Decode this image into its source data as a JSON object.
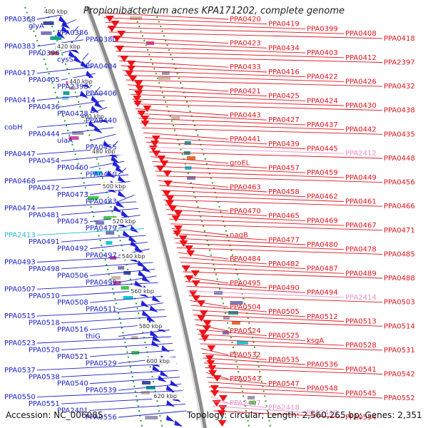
{
  "title": "Propionibacterium acnes KPA171202, complete genome",
  "footer": {
    "accession": "Accession: NC_006085",
    "summary": "Topology: circular; Length: 2,560,265 bp; Genes: 2,351"
  },
  "colors": {
    "left_label": "#1c22c8",
    "right_label": "#e0141e",
    "cyan_label": "#27b8d6",
    "pink_label": "#e890c8",
    "backbone": "#8c8c8c",
    "dotted_guide": "#2e9a2e"
  },
  "scale_ticks": [
    "400 kbp",
    "420 kbp",
    "440 kbp",
    "460 kbp",
    "480 kbp",
    "500 kbp",
    "520 kbp",
    "540 kbp",
    "560 kbp",
    "580 kbp",
    "600 kbp",
    "620 kbp"
  ],
  "left_labels": [
    {
      "text": "PPA0368",
      "kind": "gene"
    },
    {
      "text": "glyA",
      "kind": "gene"
    },
    {
      "text": "PPA0386",
      "kind": "gene"
    },
    {
      "text": "PPA0380",
      "kind": "gene"
    },
    {
      "text": "PPA0383",
      "kind": "gene"
    },
    {
      "text": "PPA0396",
      "kind": "gene"
    },
    {
      "text": "cysS",
      "kind": "gene"
    },
    {
      "text": "PPA0404",
      "kind": "gene"
    },
    {
      "text": "PPA0417",
      "kind": "gene"
    },
    {
      "text": "PPA0405",
      "kind": "gene"
    },
    {
      "text": "PPA2398",
      "kind": "gene"
    },
    {
      "text": "PPA0406",
      "kind": "gene"
    },
    {
      "text": "PPA0414",
      "kind": "gene"
    },
    {
      "text": "PPA0436",
      "kind": "gene"
    },
    {
      "text": "PPA0428",
      "kind": "gene"
    },
    {
      "text": "PPA0440",
      "kind": "gene"
    },
    {
      "text": "cobH",
      "kind": "gene"
    },
    {
      "text": "PPA0444",
      "kind": "gene"
    },
    {
      "text": "ulaA",
      "kind": "gene"
    },
    {
      "text": "PPA0455",
      "kind": "gene"
    },
    {
      "text": "PPA0447",
      "kind": "gene"
    },
    {
      "text": "PPA0454",
      "kind": "gene"
    },
    {
      "text": "PPA0460",
      "kind": "gene"
    },
    {
      "text": "PPA0450",
      "kind": "gene"
    },
    {
      "text": "PPA0468",
      "kind": "gene"
    },
    {
      "text": "PPA0472",
      "kind": "gene"
    },
    {
      "text": "PPA0473",
      "kind": "gene"
    },
    {
      "text": "PPA0483",
      "kind": "gene"
    },
    {
      "text": "PPA0474",
      "kind": "gene"
    },
    {
      "text": "PPA0481",
      "kind": "gene"
    },
    {
      "text": "PPA0475",
      "kind": "gene"
    },
    {
      "text": "PPA0479",
      "kind": "gene"
    },
    {
      "text": "PPA2413",
      "kind": "rna"
    },
    {
      "text": "PPA0491",
      "kind": "gene"
    },
    {
      "text": "PPA0492",
      "kind": "gene"
    },
    {
      "text": "PPA0497",
      "kind": "gene"
    },
    {
      "text": "PPA0493",
      "kind": "gene"
    },
    {
      "text": "PPA0498",
      "kind": "gene"
    },
    {
      "text": "PPA0506",
      "kind": "gene"
    },
    {
      "text": "PPA0499",
      "kind": "gene"
    },
    {
      "text": "PPA0507",
      "kind": "gene"
    },
    {
      "text": "PPA0510",
      "kind": "gene"
    },
    {
      "text": "PPA0508",
      "kind": "gene"
    },
    {
      "text": "PPA0511",
      "kind": "gene"
    },
    {
      "text": "PPA0515",
      "kind": "gene"
    },
    {
      "text": "PPA0518",
      "kind": "gene"
    },
    {
      "text": "PPA0516",
      "kind": "gene"
    },
    {
      "text": "thiG",
      "kind": "gene"
    },
    {
      "text": "PPA0523",
      "kind": "gene"
    },
    {
      "text": "PPA0520",
      "kind": "gene"
    },
    {
      "text": "PPA0521",
      "kind": "gene"
    },
    {
      "text": "PPA0529",
      "kind": "gene"
    },
    {
      "text": "PPA0537",
      "kind": "gene"
    },
    {
      "text": "PPA0538",
      "kind": "gene"
    },
    {
      "text": "PPA0540",
      "kind": "gene"
    },
    {
      "text": "PPA0539",
      "kind": "gene"
    },
    {
      "text": "PPA0550",
      "kind": "gene"
    },
    {
      "text": "PPA0551",
      "kind": "gene"
    },
    {
      "text": "PPA2401",
      "kind": "gene"
    },
    {
      "text": "PPA0556",
      "kind": "gene"
    }
  ],
  "right_labels": [
    {
      "text": "PPA0420",
      "kind": "gene"
    },
    {
      "text": "PPA0419",
      "kind": "gene"
    },
    {
      "text": "PPA0399",
      "kind": "gene"
    },
    {
      "text": "PPA0408",
      "kind": "gene"
    },
    {
      "text": "PPA0418",
      "kind": "gene"
    },
    {
      "text": "PPA0423",
      "kind": "gene"
    },
    {
      "text": "PPA0434",
      "kind": "gene"
    },
    {
      "text": "PPA0403",
      "kind": "gene"
    },
    {
      "text": "PPA0412",
      "kind": "gene"
    },
    {
      "text": "PPA2397",
      "kind": "gene"
    },
    {
      "text": "PPA0433",
      "kind": "gene"
    },
    {
      "text": "PPA0416",
      "kind": "gene"
    },
    {
      "text": "PPA0422",
      "kind": "gene"
    },
    {
      "text": "PPA0426",
      "kind": "gene"
    },
    {
      "text": "PPA0432",
      "kind": "gene"
    },
    {
      "text": "PPA0421",
      "kind": "gene"
    },
    {
      "text": "PPA0425",
      "kind": "gene"
    },
    {
      "text": "PPA0424",
      "kind": "gene"
    },
    {
      "text": "PPA0430",
      "kind": "gene"
    },
    {
      "text": "PPA0438",
      "kind": "gene"
    },
    {
      "text": "PPA0443",
      "kind": "gene"
    },
    {
      "text": "PPA0427",
      "kind": "gene"
    },
    {
      "text": "PPA0437",
      "kind": "gene"
    },
    {
      "text": "PPA0442",
      "kind": "gene"
    },
    {
      "text": "PPA0435",
      "kind": "gene"
    },
    {
      "text": "PPA0441",
      "kind": "gene"
    },
    {
      "text": "PPA0439",
      "kind": "gene"
    },
    {
      "text": "PPA0445",
      "kind": "gene"
    },
    {
      "text": "PPA2412",
      "kind": "rna"
    },
    {
      "text": "PPA0448",
      "kind": "gene"
    },
    {
      "text": "groEL",
      "kind": "gene"
    },
    {
      "text": "PPA0457",
      "kind": "gene"
    },
    {
      "text": "PPA0459",
      "kind": "gene"
    },
    {
      "text": "PPA0449",
      "kind": "gene"
    },
    {
      "text": "PPA0456",
      "kind": "gene"
    },
    {
      "text": "PPA0463",
      "kind": "gene"
    },
    {
      "text": "PPA0458",
      "kind": "gene"
    },
    {
      "text": "PPA0462",
      "kind": "gene"
    },
    {
      "text": "PPA0461",
      "kind": "gene"
    },
    {
      "text": "PPA0466",
      "kind": "gene"
    },
    {
      "text": "PPA0470",
      "kind": "gene"
    },
    {
      "text": "PPA0465",
      "kind": "gene"
    },
    {
      "text": "PPA0469",
      "kind": "gene"
    },
    {
      "text": "PPA0467",
      "kind": "gene"
    },
    {
      "text": "PPA0471",
      "kind": "gene"
    },
    {
      "text": "nagB",
      "kind": "gene"
    },
    {
      "text": "PPA0477",
      "kind": "gene"
    },
    {
      "text": "PPA0480",
      "kind": "gene"
    },
    {
      "text": "PPA0478",
      "kind": "gene"
    },
    {
      "text": "PPA0485",
      "kind": "gene"
    },
    {
      "text": "PPA0484",
      "kind": "gene"
    },
    {
      "text": "PPA0482",
      "kind": "gene"
    },
    {
      "text": "PPA0487",
      "kind": "gene"
    },
    {
      "text": "PPA0489",
      "kind": "gene"
    },
    {
      "text": "PPA0488",
      "kind": "gene"
    },
    {
      "text": "PPA0495",
      "kind": "gene"
    },
    {
      "text": "PPA0490",
      "kind": "gene"
    },
    {
      "text": "PPA0494",
      "kind": "gene"
    },
    {
      "text": "PPA2414",
      "kind": "rna"
    },
    {
      "text": "PPA0503",
      "kind": "gene"
    },
    {
      "text": "PPA0504",
      "kind": "gene"
    },
    {
      "text": "PPA0505",
      "kind": "gene"
    },
    {
      "text": "PPA0512",
      "kind": "gene"
    },
    {
      "text": "PPA0513",
      "kind": "gene"
    },
    {
      "text": "PPA0514",
      "kind": "gene"
    },
    {
      "text": "PPA0524",
      "kind": "gene"
    },
    {
      "text": "PPA0525",
      "kind": "gene"
    },
    {
      "text": "ksgA",
      "kind": "gene"
    },
    {
      "text": "PPA0528",
      "kind": "gene"
    },
    {
      "text": "PPA0531",
      "kind": "gene"
    },
    {
      "text": "PPA0532",
      "kind": "gene"
    },
    {
      "text": "PPA0535",
      "kind": "gene"
    },
    {
      "text": "PPA0536",
      "kind": "gene"
    },
    {
      "text": "PPA0541",
      "kind": "gene"
    },
    {
      "text": "PPA0542",
      "kind": "gene"
    },
    {
      "text": "PPA0543",
      "kind": "gene"
    },
    {
      "text": "PPA0547",
      "kind": "gene"
    },
    {
      "text": "PPA0548",
      "kind": "gene"
    },
    {
      "text": "PPA0545",
      "kind": "gene"
    },
    {
      "text": "PPA0552",
      "kind": "gene"
    },
    {
      "text": "PPA2417",
      "kind": "rna"
    },
    {
      "text": "PPA2418",
      "kind": "rna"
    },
    {
      "text": "PPA2419",
      "kind": "rna"
    },
    {
      "text": "PPA0554",
      "kind": "gene"
    }
  ]
}
